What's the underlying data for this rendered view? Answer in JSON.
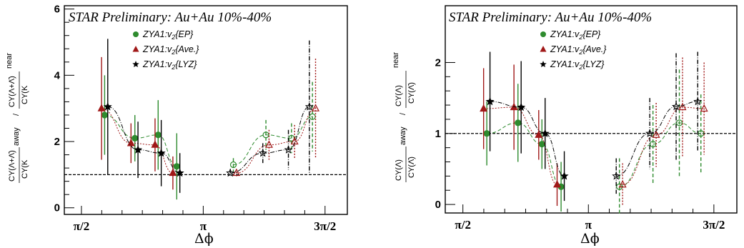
{
  "chart_data": [
    {
      "type": "scatter",
      "title": "STAR Preliminary: Au+Au 10%-40%",
      "xlabel": "Δϕ",
      "ylabel": {
        "line1_num": "CY(Λ+Λ̄)",
        "line1_suffix": "away",
        "line1_den": "CY(K",
        "line2_num": "CY(Λ+Λ̄)",
        "line2_suffix": "near",
        "line2_den": "CY(K"
      },
      "ylim": [
        -0.2,
        6.1
      ],
      "yticks": [
        0,
        2,
        4,
        6
      ],
      "xticks": [
        "π/2",
        "π",
        "3π/2"
      ],
      "reference_line": 1,
      "legend": [
        "ZYA1:v",
        "ZYA1:v",
        "ZYA1:v"
      ],
      "legend_sub": [
        "2",
        "2",
        "2"
      ],
      "legend_tail": [
        "{EP}",
        "{Ave.}",
        "{LYZ}"
      ],
      "series": [
        {
          "name": "ZYA1:v2{EP}",
          "color": "#2e8b2e",
          "marker": "circle",
          "x": [
            1.87,
            2.26,
            2.56,
            2.8,
            3.53,
            3.95,
            4.28,
            4.55
          ],
          "y": [
            2.8,
            2.1,
            2.2,
            1.25,
            1.3,
            2.2,
            2.1,
            2.75
          ],
          "err": [
            1.2,
            0.7,
            1.05,
            1.0,
            0.2,
            0.45,
            0.45,
            1.05
          ]
        },
        {
          "name": "ZYA1:v2{Ave.}",
          "color": "#a01818",
          "marker": "triangle",
          "x": [
            1.83,
            2.21,
            2.52,
            2.75,
            3.57,
            3.99,
            4.32,
            4.59
          ],
          "y": [
            3.0,
            1.95,
            1.9,
            1.05,
            1.05,
            1.9,
            2.0,
            3.0
          ],
          "err": [
            1.55,
            0.6,
            0.8,
            0.5,
            0.12,
            0.45,
            0.5,
            1.5
          ]
        },
        {
          "name": "ZYA1:v2{LYZ}",
          "color": "#000000",
          "marker": "star",
          "x": [
            1.91,
            2.3,
            2.6,
            2.84,
            3.49,
            3.91,
            4.24,
            4.51
          ],
          "y": [
            3.05,
            1.75,
            1.65,
            1.05,
            1.05,
            1.65,
            1.75,
            3.05
          ],
          "err": [
            2.05,
            0.85,
            1.0,
            0.6,
            0.12,
            0.3,
            0.6,
            2.0
          ]
        }
      ]
    },
    {
      "type": "scatter",
      "title": "STAR Preliminary: Au+Au 10%-40%",
      "xlabel": "Δϕ",
      "ylabel": {
        "line1_num": "CY(Λ)",
        "line1_suffix": "away",
        "line1_den": "CY(Λ̄)",
        "line2_num": "CY(Λ)",
        "line2_suffix": "near",
        "line2_den": "CY(Λ̄)"
      },
      "ylim": [
        -0.12,
        2.8
      ],
      "yticks": [
        0,
        1,
        2
      ],
      "xticks": [
        "π/2",
        "π",
        "3π/2"
      ],
      "reference_line": 1,
      "legend": [
        "ZYA1:v",
        "ZYA1:v",
        "ZYA1:v"
      ],
      "legend_sub": [
        "2",
        "2",
        "2"
      ],
      "legend_tail": [
        "{EP}",
        "{Ave.}",
        "{LYZ}"
      ],
      "series": [
        {
          "name": "ZYA1:v2{EP}",
          "color": "#2e8b2e",
          "marker": "circle",
          "x": [
            1.87,
            2.26,
            2.56,
            2.8,
            3.53,
            3.95,
            4.28,
            4.55
          ],
          "y": [
            1.0,
            1.15,
            0.85,
            0.25,
            0.25,
            0.85,
            1.15,
            1.0
          ],
          "err": [
            0.45,
            0.55,
            0.35,
            0.35,
            0.4,
            0.55,
            0.75,
            0.55
          ]
        },
        {
          "name": "ZYA1:v2{Ave.}",
          "color": "#a01818",
          "marker": "triangle",
          "x": [
            1.83,
            2.21,
            2.52,
            2.75,
            3.57,
            3.99,
            4.32,
            4.59
          ],
          "y": [
            1.35,
            1.37,
            0.98,
            0.28,
            0.28,
            0.98,
            1.37,
            1.35
          ],
          "err": [
            0.57,
            0.6,
            0.35,
            0.3,
            0.3,
            0.45,
            0.7,
            0.65
          ]
        },
        {
          "name": "ZYA1:v2{LYZ}",
          "color": "#000000",
          "marker": "star",
          "x": [
            1.91,
            2.3,
            2.6,
            2.84,
            3.49,
            3.91,
            4.24,
            4.51
          ],
          "y": [
            1.45,
            1.37,
            1.0,
            0.4,
            0.4,
            1.0,
            1.38,
            1.45
          ],
          "err": [
            0.7,
            0.65,
            0.5,
            0.35,
            0.25,
            0.5,
            0.75,
            0.7
          ]
        }
      ]
    }
  ]
}
